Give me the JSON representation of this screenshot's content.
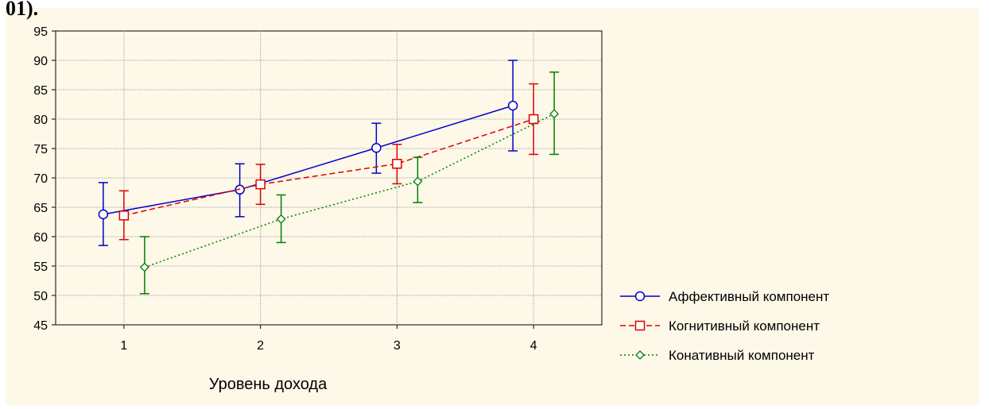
{
  "page": {
    "top_text_fragment": "01)."
  },
  "chart_data": {
    "type": "line",
    "title": "",
    "xlabel": "Уровень дохода",
    "ylabel": "",
    "categories": [
      "1",
      "2",
      "3",
      "4"
    ],
    "ylim": [
      45,
      95
    ],
    "yticks": [
      45,
      50,
      55,
      60,
      65,
      70,
      75,
      80,
      85,
      90,
      95
    ],
    "grid": true,
    "legend_position": "right",
    "error_bars": true,
    "series": [
      {
        "name": "Аффективный компонент",
        "color": "#0000cc",
        "line_style": "solid",
        "marker": "circle",
        "values": [
          63.8,
          68.0,
          75.1,
          82.3
        ],
        "lower": [
          58.5,
          63.4,
          70.8,
          74.6
        ],
        "upper": [
          69.2,
          72.4,
          79.3,
          90.0
        ]
      },
      {
        "name": "Когнитивный компонент",
        "color": "#dd0000",
        "line_style": "dashed",
        "marker": "square",
        "values": [
          63.6,
          68.9,
          72.4,
          80.0
        ],
        "lower": [
          59.5,
          65.5,
          69.0,
          74.0
        ],
        "upper": [
          67.8,
          72.3,
          75.7,
          86.0
        ]
      },
      {
        "name": "Конативный компонент",
        "color": "#008000",
        "line_style": "dotted",
        "marker": "diamond",
        "values": [
          54.8,
          63.0,
          69.4,
          80.9
        ],
        "lower": [
          50.3,
          59.0,
          65.8,
          74.0
        ],
        "upper": [
          60.0,
          67.1,
          73.5,
          88.0
        ]
      }
    ]
  }
}
